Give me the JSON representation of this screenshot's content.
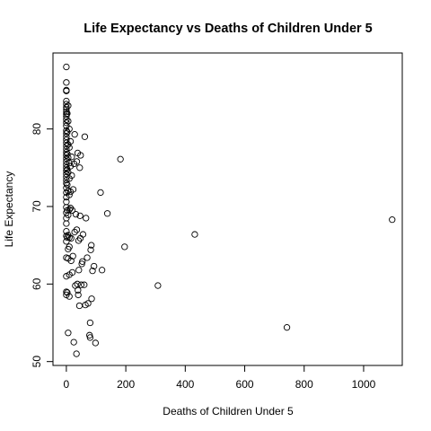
{
  "chart_data": {
    "type": "scatter",
    "title": "Life Expectancy vs  Deaths of Children Under 5",
    "xlabel": "Deaths of Children Under 5",
    "ylabel": "Life Expectancy",
    "xlim": [
      -45,
      1130
    ],
    "ylim": [
      49.5,
      89.8
    ],
    "xticks": [
      0,
      200,
      400,
      600,
      800,
      1000
    ],
    "yticks": [
      50,
      60,
      70,
      80
    ],
    "grid": false,
    "legend": "none",
    "marker": "open-circle",
    "points": [
      {
        "x": 0,
        "y": 88.0
      },
      {
        "x": 0,
        "y": 86.0
      },
      {
        "x": 0,
        "y": 85.0
      },
      {
        "x": 0,
        "y": 84.9
      },
      {
        "x": 0,
        "y": 83.6
      },
      {
        "x": 0,
        "y": 83.2
      },
      {
        "x": 0,
        "y": 82.8
      },
      {
        "x": 0,
        "y": 82.5
      },
      {
        "x": 0,
        "y": 82.2
      },
      {
        "x": 0,
        "y": 81.9
      },
      {
        "x": 0,
        "y": 81.6
      },
      {
        "x": 0,
        "y": 81.2
      },
      {
        "x": 0,
        "y": 80.8
      },
      {
        "x": 0,
        "y": 80.4
      },
      {
        "x": 0,
        "y": 79.8
      },
      {
        "x": 0,
        "y": 79.4
      },
      {
        "x": 0,
        "y": 79.0
      },
      {
        "x": 0,
        "y": 78.6
      },
      {
        "x": 0,
        "y": 78.2
      },
      {
        "x": 0,
        "y": 77.8
      },
      {
        "x": 0,
        "y": 77.4
      },
      {
        "x": 0,
        "y": 77.0
      },
      {
        "x": 0,
        "y": 76.6
      },
      {
        "x": 0,
        "y": 76.2
      },
      {
        "x": 0,
        "y": 75.8
      },
      {
        "x": 0,
        "y": 75.4
      },
      {
        "x": 0,
        "y": 75.0
      },
      {
        "x": 0,
        "y": 74.6
      },
      {
        "x": 0,
        "y": 74.2
      },
      {
        "x": 0,
        "y": 73.8
      },
      {
        "x": 0,
        "y": 73.4
      },
      {
        "x": 0,
        "y": 73.0
      },
      {
        "x": 0,
        "y": 72.4
      },
      {
        "x": 0,
        "y": 71.8
      },
      {
        "x": 0,
        "y": 71.2
      },
      {
        "x": 0,
        "y": 70.6
      },
      {
        "x": 0,
        "y": 69.9
      },
      {
        "x": 0,
        "y": 69.2
      },
      {
        "x": 0,
        "y": 68.5
      },
      {
        "x": 0,
        "y": 67.8
      },
      {
        "x": 0,
        "y": 66.8
      },
      {
        "x": 0,
        "y": 66.2
      },
      {
        "x": 0,
        "y": 65.5
      },
      {
        "x": 0,
        "y": 63.4
      },
      {
        "x": 0,
        "y": 61.0
      },
      {
        "x": 0,
        "y": 59.0
      },
      {
        "x": 0,
        "y": 58.6
      },
      {
        "x": 3,
        "y": 82.0
      },
      {
        "x": 3,
        "y": 79.6
      },
      {
        "x": 3,
        "y": 76.8
      },
      {
        "x": 3,
        "y": 74.8
      },
      {
        "x": 3,
        "y": 72.8
      },
      {
        "x": 3,
        "y": 69.5
      },
      {
        "x": 3,
        "y": 66.0
      },
      {
        "x": 3,
        "y": 58.9
      },
      {
        "x": 6,
        "y": 83.0
      },
      {
        "x": 6,
        "y": 81.0
      },
      {
        "x": 6,
        "y": 78.0
      },
      {
        "x": 6,
        "y": 76.3
      },
      {
        "x": 6,
        "y": 74.4
      },
      {
        "x": 6,
        "y": 72.0
      },
      {
        "x": 6,
        "y": 68.9
      },
      {
        "x": 6,
        "y": 66.3
      },
      {
        "x": 6,
        "y": 64.5
      },
      {
        "x": 6,
        "y": 63.3
      },
      {
        "x": 6,
        "y": 53.7
      },
      {
        "x": 10,
        "y": 80.0
      },
      {
        "x": 10,
        "y": 77.6
      },
      {
        "x": 10,
        "y": 75.6
      },
      {
        "x": 10,
        "y": 73.6
      },
      {
        "x": 10,
        "y": 71.5
      },
      {
        "x": 10,
        "y": 69.6
      },
      {
        "x": 10,
        "y": 66.0
      },
      {
        "x": 10,
        "y": 64.8
      },
      {
        "x": 10,
        "y": 61.2
      },
      {
        "x": 10,
        "y": 58.4
      },
      {
        "x": 14,
        "y": 78.4
      },
      {
        "x": 14,
        "y": 75.2
      },
      {
        "x": 14,
        "y": 71.9
      },
      {
        "x": 14,
        "y": 69.8
      },
      {
        "x": 16,
        "y": 65.9
      },
      {
        "x": 16,
        "y": 63.0
      },
      {
        "x": 18,
        "y": 76.4
      },
      {
        "x": 18,
        "y": 74.0
      },
      {
        "x": 20,
        "y": 69.5
      },
      {
        "x": 20,
        "y": 61.5
      },
      {
        "x": 22,
        "y": 63.6
      },
      {
        "x": 23,
        "y": 72.2
      },
      {
        "x": 25,
        "y": 52.5
      },
      {
        "x": 26,
        "y": 75.5
      },
      {
        "x": 28,
        "y": 79.3
      },
      {
        "x": 28,
        "y": 66.7
      },
      {
        "x": 30,
        "y": 59.8
      },
      {
        "x": 32,
        "y": 69.0
      },
      {
        "x": 34,
        "y": 51.0
      },
      {
        "x": 35,
        "y": 75.8
      },
      {
        "x": 35,
        "y": 67.0
      },
      {
        "x": 37,
        "y": 60.0
      },
      {
        "x": 38,
        "y": 76.9
      },
      {
        "x": 39,
        "y": 59.2
      },
      {
        "x": 40,
        "y": 58.6
      },
      {
        "x": 41,
        "y": 65.6
      },
      {
        "x": 42,
        "y": 61.8
      },
      {
        "x": 44,
        "y": 57.2
      },
      {
        "x": 45,
        "y": 75.0
      },
      {
        "x": 46,
        "y": 68.8
      },
      {
        "x": 47,
        "y": 65.9
      },
      {
        "x": 48,
        "y": 76.6
      },
      {
        "x": 50,
        "y": 59.9
      },
      {
        "x": 52,
        "y": 62.6
      },
      {
        "x": 54,
        "y": 62.9
      },
      {
        "x": 56,
        "y": 66.4
      },
      {
        "x": 60,
        "y": 59.9
      },
      {
        "x": 62,
        "y": 79.0
      },
      {
        "x": 64,
        "y": 57.3
      },
      {
        "x": 66,
        "y": 68.5
      },
      {
        "x": 70,
        "y": 63.4
      },
      {
        "x": 73,
        "y": 57.5
      },
      {
        "x": 78,
        "y": 53.4
      },
      {
        "x": 80,
        "y": 53.1
      },
      {
        "x": 80,
        "y": 55.0
      },
      {
        "x": 82,
        "y": 64.4
      },
      {
        "x": 84,
        "y": 65.0
      },
      {
        "x": 85,
        "y": 58.1
      },
      {
        "x": 88,
        "y": 61.7
      },
      {
        "x": 93,
        "y": 62.3
      },
      {
        "x": 98,
        "y": 52.4
      },
      {
        "x": 115,
        "y": 71.8
      },
      {
        "x": 120,
        "y": 61.8
      },
      {
        "x": 138,
        "y": 69.1
      },
      {
        "x": 182,
        "y": 76.1
      },
      {
        "x": 196,
        "y": 64.8
      },
      {
        "x": 308,
        "y": 59.8
      },
      {
        "x": 432,
        "y": 66.4
      },
      {
        "x": 742,
        "y": 54.4
      },
      {
        "x": 1096,
        "y": 68.3
      }
    ]
  }
}
